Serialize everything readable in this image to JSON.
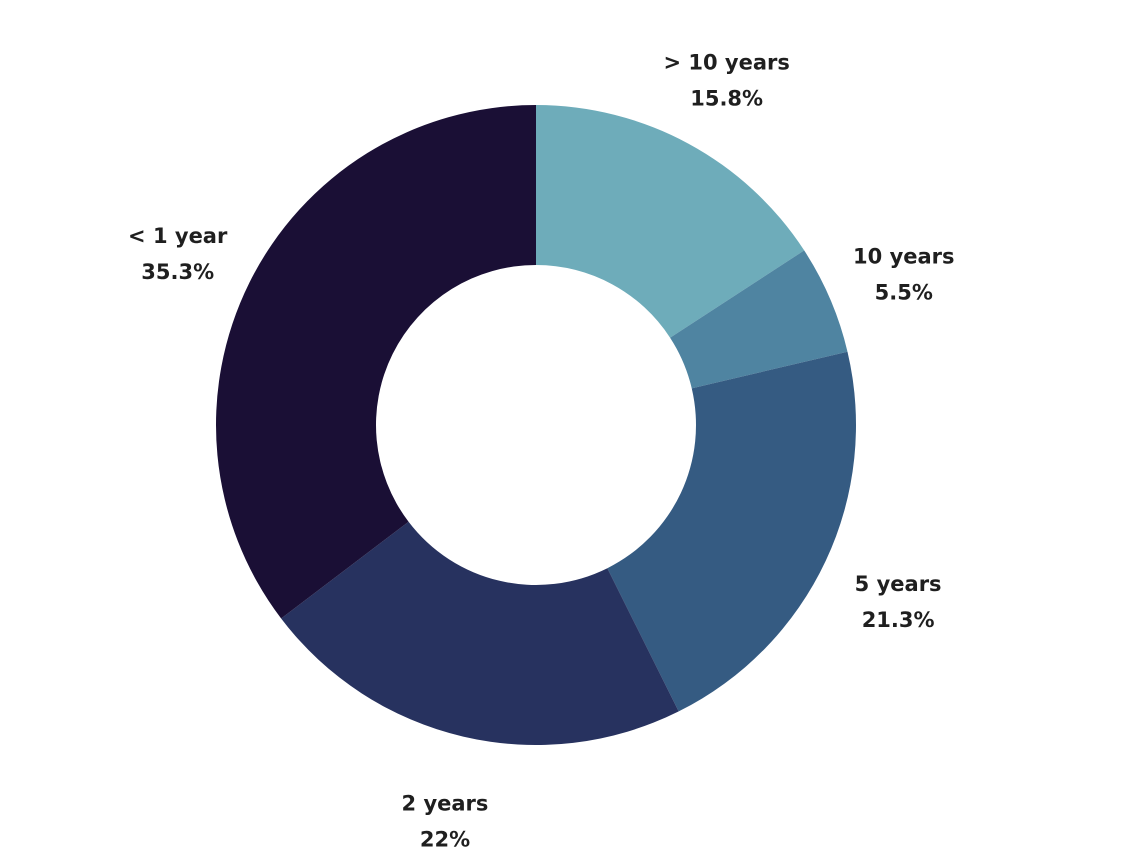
{
  "chart_data": {
    "type": "pie",
    "subtype": "donut",
    "title": "",
    "series": [
      {
        "values": [
          {
            "label": "> 10 years",
            "value": 15.8,
            "value_label": "15.8%",
            "color": "#6eacba"
          },
          {
            "label": "10 years",
            "value": 5.5,
            "value_label": "5.5%",
            "color": "#4f84a1"
          },
          {
            "label": "5 years",
            "value": 21.3,
            "value_label": "21.3%",
            "color": "#355b82"
          },
          {
            "label": "2 years",
            "value": 22,
            "value_label": "22%",
            "color": "#27325f"
          },
          {
            "label": "< 1 year",
            "value": 35.3,
            "value_label": "35.3%",
            "color": "#1a0f35"
          }
        ]
      }
    ],
    "start_angle": "12 o'clock",
    "direction": "clockwise",
    "legend": "none",
    "labels": "outside"
  }
}
